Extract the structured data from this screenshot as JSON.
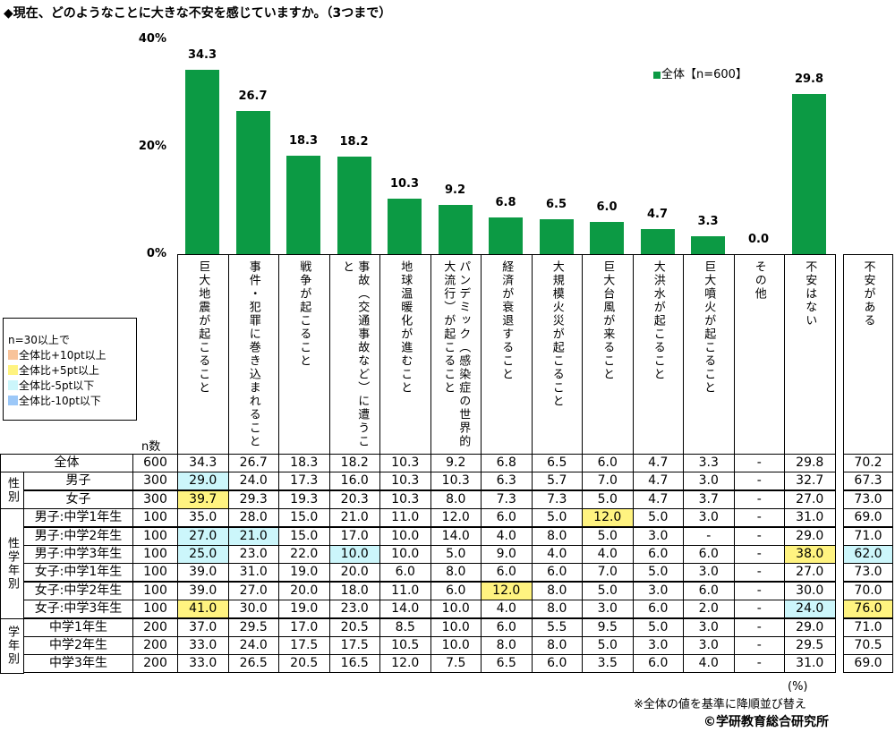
{
  "title": "◆現在、どのようなことに大きな不安を感じていますか。（3つまで）",
  "chart_data": {
    "type": "bar",
    "title": "◆現在、どのようなことに大きな不安を感じていますか。（3つまで）",
    "legend": "全体【n=600】",
    "legend_position": "top-right",
    "ylim": [
      0,
      40
    ],
    "yticks": [
      "0%",
      "20%",
      "40%"
    ],
    "grid": false,
    "bar_color": "#0c9a44",
    "categories": [
      "巨大地震が起こること",
      "事件・犯罪に巻き込まれること",
      "戦争が起こること",
      "事故（交通事故など）に遭うこと",
      "地球温暖化が進むこと",
      "パンデミック（感染症の世界的大流行）が起こること",
      "経済が衰退すること",
      "大規模火災が起こること",
      "巨大台風が来ること",
      "大洪水が起こること",
      "巨大噴火が起こること",
      "その他",
      "不安はない"
    ],
    "values": [
      34.3,
      26.7,
      18.3,
      18.2,
      10.3,
      9.2,
      6.8,
      6.5,
      6.0,
      4.7,
      3.3,
      0.0,
      29.8
    ],
    "value_labels": [
      "34.3",
      "26.7",
      "18.3",
      "18.2",
      "10.3",
      "9.2",
      "6.8",
      "6.5",
      "6.0",
      "4.7",
      "3.3",
      "0.0",
      "29.8"
    ]
  },
  "extra_column": "不安がある",
  "legend": {
    "title": "n=30以上で",
    "items": [
      {
        "label": "全体比+10pt以上",
        "color": "#f8c39a"
      },
      {
        "label": "全体比+5pt以上",
        "color": "#fff380"
      },
      {
        "label": "全体比-5pt以下",
        "color": "#ccf6fb"
      },
      {
        "label": "全体比-10pt以下",
        "color": "#9cc8f8"
      }
    ]
  },
  "n_header": "n数",
  "table": {
    "groups": [
      {
        "label": "性別",
        "rows": [
          1,
          2
        ]
      },
      {
        "label": "性学年別",
        "rows": [
          3,
          8
        ]
      },
      {
        "label": "学年別",
        "rows": [
          9,
          11
        ]
      }
    ],
    "rows": [
      {
        "label": "全体",
        "n": "600",
        "values": [
          "34.3",
          "26.7",
          "18.3",
          "18.2",
          "10.3",
          "9.2",
          "6.8",
          "6.5",
          "6.0",
          "4.7",
          "3.3",
          "-",
          "29.8",
          "70.2"
        ],
        "flags": {}
      },
      {
        "label": "男子",
        "n": "300",
        "values": [
          "29.0",
          "24.0",
          "17.3",
          "16.0",
          "10.3",
          "10.3",
          "6.3",
          "5.7",
          "7.0",
          "4.7",
          "3.0",
          "-",
          "32.7",
          "67.3"
        ],
        "flags": {
          "0": "#ccf6fb"
        }
      },
      {
        "label": "女子",
        "n": "300",
        "values": [
          "39.7",
          "29.3",
          "19.3",
          "20.3",
          "10.3",
          "8.0",
          "7.3",
          "7.3",
          "5.0",
          "4.7",
          "3.7",
          "-",
          "27.0",
          "73.0"
        ],
        "flags": {
          "0": "#fff380"
        }
      },
      {
        "label": "男子:中学1年生",
        "n": "100",
        "values": [
          "35.0",
          "28.0",
          "15.0",
          "21.0",
          "11.0",
          "12.0",
          "6.0",
          "5.0",
          "12.0",
          "5.0",
          "3.0",
          "-",
          "31.0",
          "69.0"
        ],
        "flags": {
          "8": "#fff380"
        }
      },
      {
        "label": "男子:中学2年生",
        "n": "100",
        "values": [
          "27.0",
          "21.0",
          "15.0",
          "17.0",
          "10.0",
          "14.0",
          "4.0",
          "8.0",
          "5.0",
          "3.0",
          "-",
          "-",
          "29.0",
          "71.0"
        ],
        "flags": {
          "0": "#ccf6fb",
          "1": "#ccf6fb"
        }
      },
      {
        "label": "男子:中学3年生",
        "n": "100",
        "values": [
          "25.0",
          "23.0",
          "22.0",
          "10.0",
          "10.0",
          "5.0",
          "9.0",
          "4.0",
          "4.0",
          "6.0",
          "6.0",
          "-",
          "38.0",
          "62.0"
        ],
        "flags": {
          "0": "#ccf6fb",
          "3": "#ccf6fb",
          "12": "#fff380",
          "13": "#ccf6fb"
        }
      },
      {
        "label": "女子:中学1年生",
        "n": "100",
        "values": [
          "39.0",
          "31.0",
          "19.0",
          "20.0",
          "6.0",
          "8.0",
          "6.0",
          "6.0",
          "7.0",
          "5.0",
          "3.0",
          "-",
          "27.0",
          "73.0"
        ],
        "flags": {}
      },
      {
        "label": "女子:中学2年生",
        "n": "100",
        "values": [
          "39.0",
          "27.0",
          "20.0",
          "18.0",
          "11.0",
          "6.0",
          "12.0",
          "8.0",
          "5.0",
          "3.0",
          "6.0",
          "-",
          "30.0",
          "70.0"
        ],
        "flags": {
          "6": "#fff380"
        }
      },
      {
        "label": "女子:中学3年生",
        "n": "100",
        "values": [
          "41.0",
          "30.0",
          "19.0",
          "23.0",
          "14.0",
          "10.0",
          "4.0",
          "8.0",
          "3.0",
          "6.0",
          "2.0",
          "-",
          "24.0",
          "76.0"
        ],
        "flags": {
          "0": "#fff380",
          "12": "#ccf6fb",
          "13": "#fff380"
        }
      },
      {
        "label": "中学1年生",
        "n": "200",
        "values": [
          "37.0",
          "29.5",
          "17.0",
          "20.5",
          "8.5",
          "10.0",
          "6.0",
          "5.5",
          "9.5",
          "5.0",
          "3.0",
          "-",
          "29.0",
          "71.0"
        ],
        "flags": {}
      },
      {
        "label": "中学2年生",
        "n": "200",
        "values": [
          "33.0",
          "24.0",
          "17.5",
          "17.5",
          "10.5",
          "10.0",
          "8.0",
          "8.0",
          "5.0",
          "3.0",
          "3.0",
          "-",
          "29.5",
          "70.5"
        ],
        "flags": {}
      },
      {
        "label": "中学3年生",
        "n": "200",
        "values": [
          "33.0",
          "26.5",
          "20.5",
          "16.5",
          "12.0",
          "7.5",
          "6.5",
          "6.0",
          "3.5",
          "6.0",
          "4.0",
          "-",
          "31.0",
          "69.0"
        ],
        "flags": {}
      }
    ]
  },
  "unit": "(%)",
  "note": "※全体の値を基準に降順並び替え",
  "copyright": "©学研教育総合研究所"
}
